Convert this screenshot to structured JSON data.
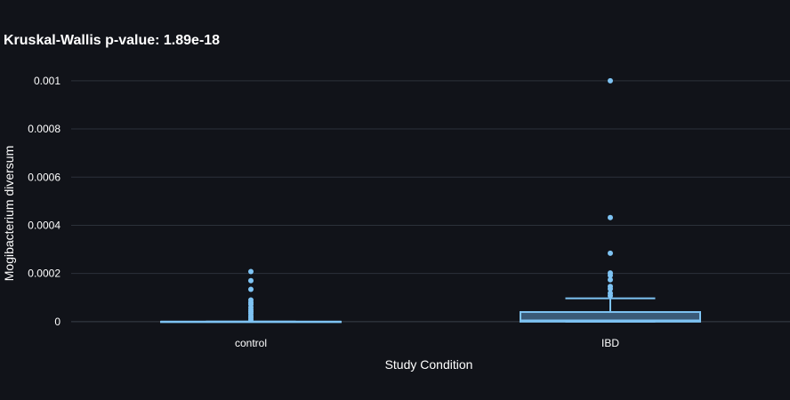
{
  "chart_data": {
    "type": "box",
    "title": "Kruskal-Wallis p-value: 1.89e-18",
    "xlabel": "Study Condition",
    "ylabel": "Mogibacterium diversum",
    "ylim": [
      -3e-05,
      0.00104
    ],
    "yticks": [
      0,
      0.0002,
      0.0004,
      0.0006,
      0.0008,
      0.001
    ],
    "ytick_labels": [
      "0",
      "0.0002",
      "0.0004",
      "0.0006",
      "0.0008",
      "0.001"
    ],
    "grid": true,
    "categories": [
      "control",
      "IBD"
    ],
    "series": [
      {
        "category": "control",
        "min": 0,
        "q1": 0,
        "median": 0,
        "q3": 0,
        "max": 0,
        "outliers": [
          0.000208,
          0.00017,
          0.000134,
          9e-05,
          8e-05,
          7.2e-05,
          6e-05,
          5e-05,
          4.2e-05,
          3.4e-05,
          2.4e-05,
          1.6e-05,
          8e-06
        ]
      },
      {
        "category": "IBD",
        "min": 0,
        "q1": 0,
        "median": 5e-06,
        "q3": 4e-05,
        "max": 9.7e-05,
        "outliers": [
          0.001,
          0.000432,
          0.000284,
          0.000202,
          0.000192,
          0.000174,
          0.000146,
          0.000136,
          0.000118,
          0.000108
        ]
      }
    ],
    "colors": {
      "box_line": "#7ec3f3",
      "box_fill": "#3a5a78",
      "point": "#7ec3f3"
    }
  }
}
